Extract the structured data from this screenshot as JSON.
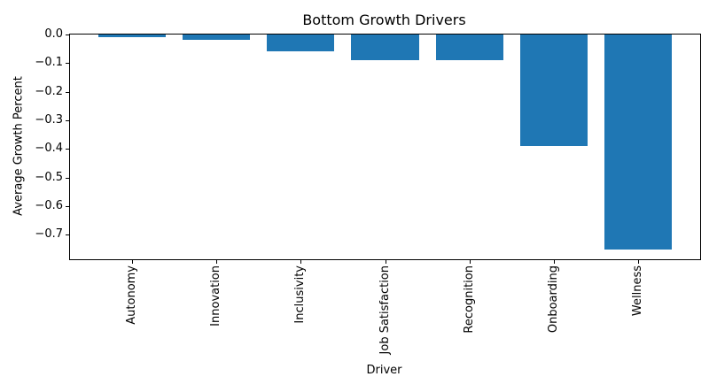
{
  "chart_data": {
    "type": "bar",
    "title": "Bottom Growth Drivers",
    "xlabel": "Driver",
    "ylabel": "Average Growth Percent",
    "categories": [
      "Autonomy",
      "Innovation",
      "Inclusivity",
      "Job Satisfaction",
      "Recognition",
      "Onboarding",
      "Wellness"
    ],
    "values": [
      -0.01,
      -0.02,
      -0.06,
      -0.09,
      -0.09,
      -0.39,
      -0.75
    ],
    "ylim": [
      -0.785,
      0
    ],
    "yticks": [
      0,
      -0.1,
      -0.2,
      -0.3,
      -0.4,
      -0.5,
      -0.6,
      -0.7
    ],
    "ytick_labels": [
      "0.0",
      "−0.1",
      "−0.2",
      "−0.3",
      "−0.4",
      "−0.5",
      "−0.6",
      "−0.7"
    ],
    "grid": false,
    "legend": false,
    "colors": {
      "bar": "#1f77b4",
      "text": "#000000",
      "spine": "#000000",
      "background": "#ffffff"
    }
  }
}
